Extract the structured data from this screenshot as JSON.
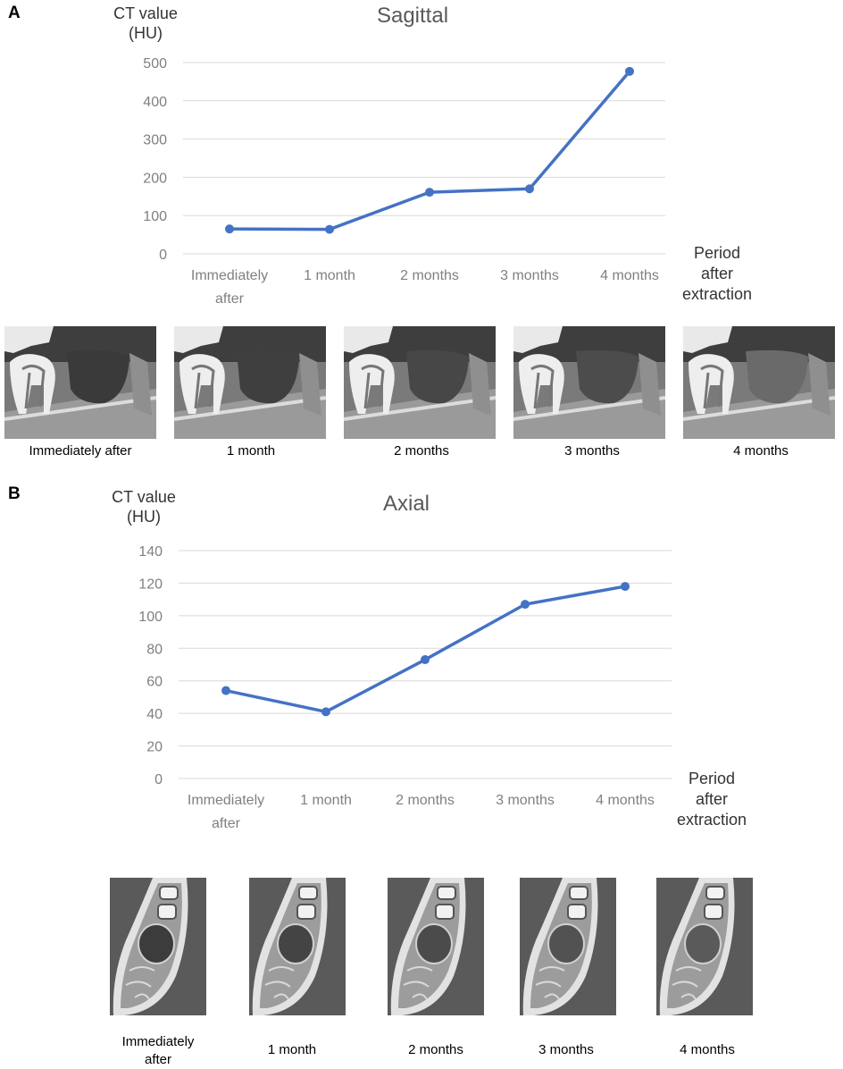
{
  "panels": {
    "a": {
      "label": "A"
    },
    "b": {
      "label": "B"
    }
  },
  "chart_data": [
    {
      "type": "line",
      "title": "Sagittal",
      "ylabel": "CT value\n(HU)",
      "xlabel": "Period\nafter\nextraction",
      "categories": [
        "Immediately\nafter",
        "1 month",
        "2 months",
        "3 months",
        "4 months"
      ],
      "series": [
        {
          "name": "Sagittal",
          "values": [
            65,
            64,
            161,
            170,
            477
          ],
          "color": "#4472C4"
        }
      ],
      "ylim": [
        0,
        500
      ],
      "yticks": [
        0,
        100,
        200,
        300,
        400,
        500
      ],
      "grid": true
    },
    {
      "type": "line",
      "title": "Axial",
      "ylabel": "CT value\n(HU)",
      "xlabel": "Period\nafter\nextraction",
      "categories": [
        "Immediately\nafter",
        "1 month",
        "2 months",
        "3 months",
        "4 months"
      ],
      "series": [
        {
          "name": "Axial",
          "values": [
            54,
            41,
            73,
            107,
            118
          ],
          "color": "#4472C4"
        }
      ],
      "ylim": [
        0,
        140
      ],
      "yticks": [
        0,
        20,
        40,
        60,
        80,
        100,
        120,
        140
      ],
      "grid": true
    }
  ],
  "sagittal_images": {
    "captions": [
      "Immediately after",
      "1 month",
      "2 months",
      "3 months",
      "4 months"
    ]
  },
  "axial_images": {
    "captions": [
      "Immediately\nafter",
      "1 month",
      "2 months",
      "3 months",
      "4 months"
    ]
  }
}
